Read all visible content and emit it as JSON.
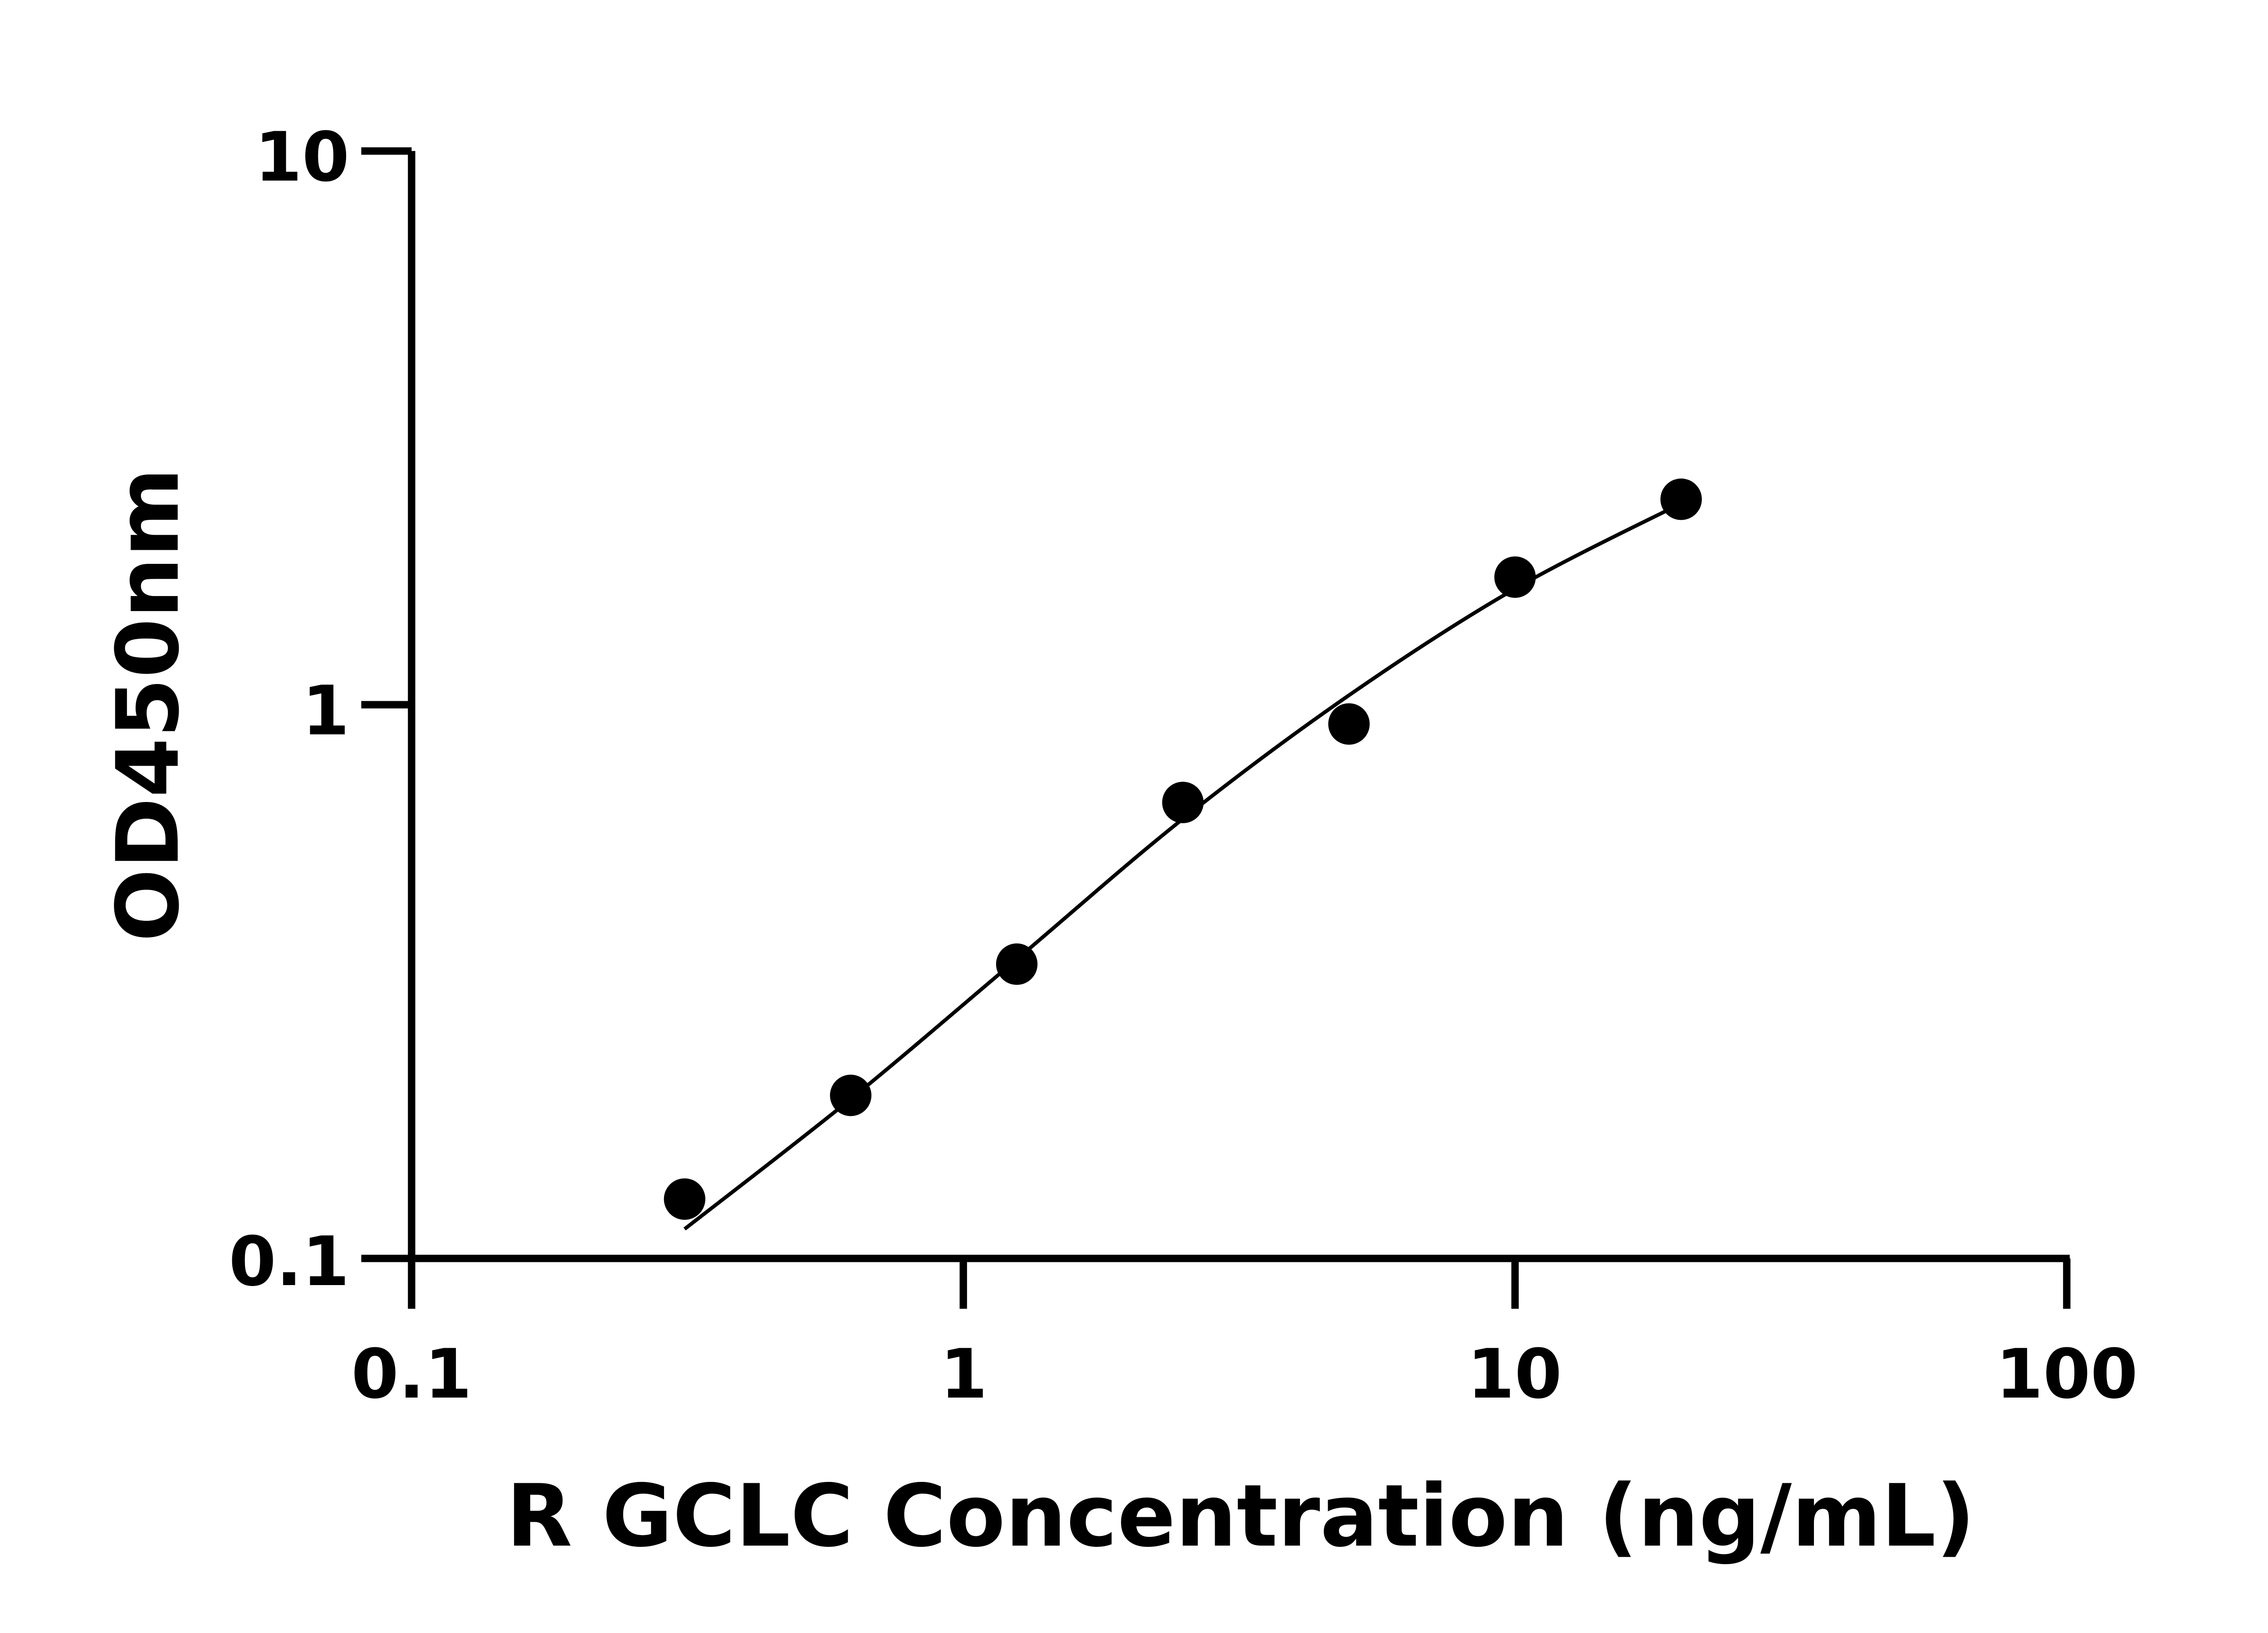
{
  "chart_data": {
    "type": "scatter",
    "xlabel": "R GCLC Concentration (ng/mL)",
    "ylabel": "OD450nm",
    "xscale": "log",
    "yscale": "log",
    "xlim": [
      0.1,
      100
    ],
    "ylim": [
      0.1,
      10
    ],
    "xticks": [
      "0.1",
      "1",
      "10",
      "100"
    ],
    "yticks": [
      "0.1",
      "1",
      "10"
    ],
    "grid": false,
    "colors": {
      "points": "#000000",
      "curve": "#000000",
      "axes": "#000000"
    },
    "series": [
      {
        "x": [
          0.3125,
          0.625,
          1.25,
          2.5,
          5,
          10,
          20
        ],
        "y": [
          0.128,
          0.197,
          0.34,
          0.666,
          0.923,
          1.7,
          2.35
        ]
      }
    ],
    "fit_curve": {
      "x": [
        0.3125,
        0.625,
        1.25,
        2.5,
        5,
        10,
        20
      ],
      "y": [
        0.113,
        0.194,
        0.347,
        0.622,
        1.04,
        1.62,
        2.31
      ]
    }
  }
}
